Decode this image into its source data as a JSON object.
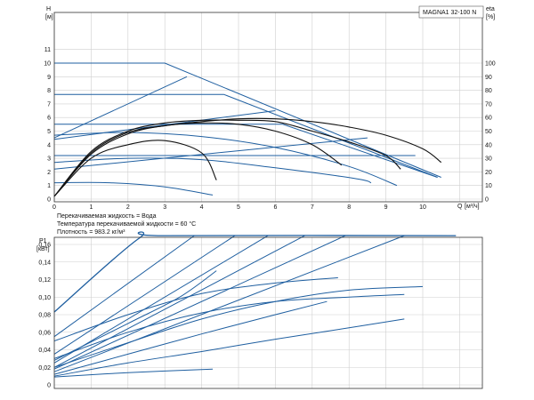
{
  "chart_data": [
    {
      "type": "line",
      "model": "MAGNA1 32-100 N",
      "ylabel": "H",
      "yunit": "[м]",
      "y2label": "eta",
      "y2unit": "[%]",
      "xlabel": "Q",
      "xunit": "[м³/ч]",
      "xlim": [
        0,
        11
      ],
      "ylim": [
        0,
        12
      ],
      "y2lim": [
        0,
        120
      ],
      "xticks": [
        "0",
        "1",
        "2",
        "3",
        "4",
        "5",
        "6",
        "7",
        "8",
        "9",
        "10"
      ],
      "yticks": [
        "0",
        "1",
        "2",
        "3",
        "4",
        "5",
        "6",
        "7",
        "8",
        "9",
        "10",
        "11"
      ],
      "y2ticks": [
        "0",
        "10",
        "20",
        "30",
        "40",
        "50",
        "60",
        "70",
        "80",
        "90",
        "100"
      ],
      "grid": true,
      "notes": [
        "Перекачиваемая жидкость = Вода",
        "Температура перекачиваемой жидкости = 60 °C",
        "Плотность = 983.2 кг/м³"
      ],
      "series": [
        {
          "values": [
            [
              0,
              10
            ],
            [
              3,
              10
            ],
            [
              10.5,
              1.6
            ]
          ]
        },
        {
          "values": [
            [
              0,
              7.7
            ],
            [
              4.6,
              7.7
            ],
            [
              10.4,
              1.6
            ]
          ]
        },
        {
          "values": [
            [
              0,
              5.5
            ],
            [
              6.2,
              5.5
            ],
            [
              10.4,
              1.6
            ]
          ]
        },
        {
          "values": [
            [
              0,
              3.2
            ],
            [
              9.8,
              3.2
            ]
          ]
        },
        {
          "values": [
            [
              0,
              4.5
            ],
            [
              3.6,
              9.0
            ]
          ]
        },
        {
          "values": [
            [
              0,
              4.4
            ],
            [
              6.0,
              6.5
            ]
          ]
        },
        {
          "values": [
            [
              0,
              2.2
            ],
            [
              8.5,
              4.5
            ]
          ]
        },
        {
          "values": [
            [
              0,
              4.7
            ],
            [
              2.0,
              4.9
            ],
            [
              4.0,
              4.6
            ],
            [
              6.0,
              3.8
            ],
            [
              8.0,
              2.4
            ],
            [
              9.3,
              1.0
            ]
          ]
        },
        {
          "values": [
            [
              0,
              2.7
            ],
            [
              2.0,
              3.0
            ],
            [
              4.0,
              2.9
            ],
            [
              6.0,
              2.3
            ],
            [
              8.2,
              1.5
            ],
            [
              8.6,
              1.2
            ]
          ]
        },
        {
          "values": [
            [
              0,
              1.2
            ],
            [
              1.5,
              1.2
            ],
            [
              3.0,
              0.9
            ],
            [
              4.3,
              0.3
            ]
          ]
        },
        {
          "values": [
            [
              0,
              0.2
            ],
            [
              1.0,
              3.0
            ],
            [
              2.0,
              4.0
            ],
            [
              3.0,
              4.3
            ],
            [
              4.0,
              3.4
            ],
            [
              4.4,
              1.4
            ]
          ]
        },
        {
          "values": [
            [
              0,
              0.2
            ],
            [
              1.0,
              3.3
            ],
            [
              2.0,
              4.8
            ],
            [
              3.0,
              5.4
            ],
            [
              4.0,
              5.6
            ],
            [
              5.0,
              5.5
            ],
            [
              6.0,
              5.0
            ],
            [
              7.0,
              4.0
            ],
            [
              7.8,
              2.5
            ]
          ]
        },
        {
          "values": [
            [
              0,
              0.2
            ],
            [
              1.0,
              3.5
            ],
            [
              2.0,
              5.0
            ],
            [
              3.0,
              5.6
            ],
            [
              4.0,
              5.8
            ],
            [
              5.0,
              5.8
            ],
            [
              6.0,
              5.7
            ],
            [
              7.0,
              5.0
            ],
            [
              8.0,
              4.2
            ],
            [
              9.0,
              3.2
            ],
            [
              9.4,
              2.2
            ]
          ]
        },
        {
          "values": [
            [
              0,
              0.2
            ],
            [
              1.0,
              3.4
            ],
            [
              2.0,
              4.9
            ],
            [
              3.0,
              5.4
            ],
            [
              4.0,
              5.7
            ],
            [
              5.0,
              5.9
            ],
            [
              6.0,
              5.9
            ],
            [
              7.0,
              5.7
            ],
            [
              8.0,
              5.3
            ],
            [
              9.0,
              4.7
            ],
            [
              10.0,
              3.7
            ],
            [
              10.5,
              2.7
            ]
          ]
        }
      ]
    },
    {
      "type": "line",
      "ylabel": "P1",
      "yunit": "[кВт]",
      "xlim": [
        0,
        11
      ],
      "ylim": [
        0,
        0.18
      ],
      "yticks": [
        "0",
        "0,02",
        "0,04",
        "0,06",
        "0,08",
        "0,10",
        "0,12",
        "0,14",
        "0,16"
      ],
      "grid": true,
      "series": [
        {
          "values": [
            [
              0,
              0.083
            ],
            [
              2.3,
              0.167
            ],
            [
              3.0,
              0.17
            ],
            [
              10.9,
              0.17
            ]
          ]
        },
        {
          "values": [
            [
              0,
              0.055
            ],
            [
              3.8,
              0.17
            ]
          ]
        },
        {
          "values": [
            [
              0,
              0.035
            ],
            [
              4.9,
              0.17
            ]
          ]
        },
        {
          "values": [
            [
              0,
              0.025
            ],
            [
              5.8,
              0.17
            ]
          ]
        },
        {
          "values": [
            [
              0,
              0.02
            ],
            [
              6.8,
              0.17
            ]
          ]
        },
        {
          "values": [
            [
              0,
              0.018
            ],
            [
              7.9,
              0.17
            ]
          ]
        },
        {
          "values": [
            [
              0,
              0.015
            ],
            [
              9.5,
              0.17
            ]
          ]
        },
        {
          "values": [
            [
              0,
              0.05
            ],
            [
              2.0,
              0.08
            ],
            [
              4.0,
              0.104
            ],
            [
              6.0,
              0.116
            ],
            [
              7.7,
              0.122
            ]
          ]
        },
        {
          "values": [
            [
              0,
              0.03
            ],
            [
              2.0,
              0.06
            ],
            [
              4.0,
              0.082
            ],
            [
              6.0,
              0.095
            ],
            [
              8.0,
              0.1
            ],
            [
              9.5,
              0.103
            ]
          ]
        },
        {
          "values": [
            [
              0,
              0.02
            ],
            [
              2.0,
              0.048
            ],
            [
              4.0,
              0.075
            ],
            [
              6.0,
              0.095
            ],
            [
              8.0,
              0.108
            ],
            [
              10.0,
              0.112
            ]
          ]
        },
        {
          "values": [
            [
              0,
              0.009
            ],
            [
              2.0,
              0.014
            ],
            [
              4.3,
              0.018
            ]
          ]
        },
        {
          "values": [
            [
              0,
              0.028
            ],
            [
              2.0,
              0.07
            ],
            [
              3.4,
              0.1
            ],
            [
              4.4,
              0.13
            ]
          ]
        },
        {
          "values": [
            [
              0,
              0.012
            ],
            [
              2.0,
              0.035
            ],
            [
              4.0,
              0.058
            ],
            [
              6.0,
              0.08
            ],
            [
              7.4,
              0.095
            ]
          ]
        },
        {
          "values": [
            [
              0,
              0.01
            ],
            [
              2.0,
              0.025
            ],
            [
              4.0,
              0.038
            ],
            [
              6.0,
              0.052
            ],
            [
              8.0,
              0.065
            ],
            [
              9.5,
              0.075
            ]
          ]
        }
      ]
    }
  ]
}
